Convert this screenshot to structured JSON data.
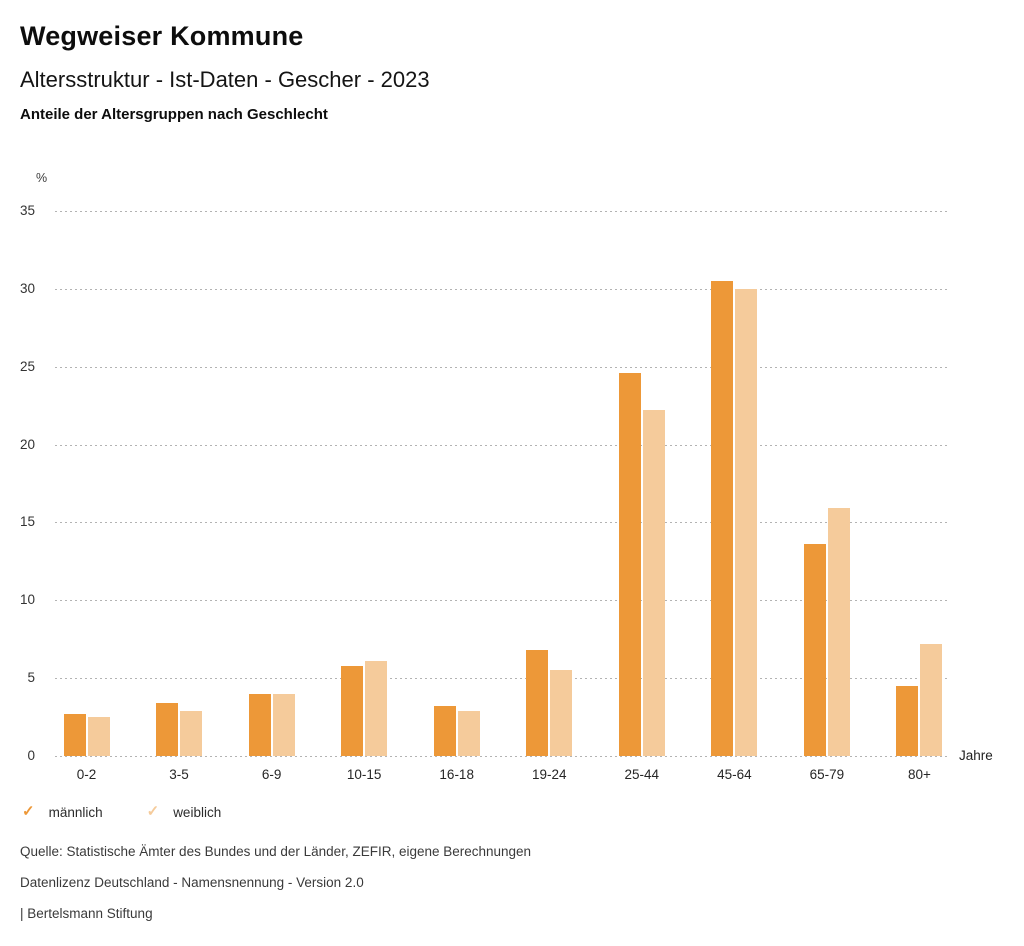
{
  "header": {
    "title": "Wegweiser Kommune",
    "subtitle": "Altersstruktur - Ist-Daten - Gescher - 2023",
    "chart_heading": "Anteile der Altersgruppen nach Geschlecht"
  },
  "chart_data": {
    "type": "bar",
    "title": "Anteile der Altersgruppen nach Geschlecht",
    "categories": [
      "0-2",
      "3-5",
      "6-9",
      "10-15",
      "16-18",
      "19-24",
      "25-44",
      "45-64",
      "65-79",
      "80+"
    ],
    "series": [
      {
        "name": "männlich",
        "color": "#ED9838",
        "values": [
          2.7,
          3.4,
          4.0,
          5.8,
          3.2,
          6.8,
          24.6,
          30.5,
          13.6,
          4.5
        ]
      },
      {
        "name": "weiblich",
        "color": "#F5CB9B",
        "values": [
          2.5,
          2.9,
          4.0,
          6.1,
          2.9,
          5.5,
          22.2,
          30.0,
          15.9,
          7.2
        ]
      }
    ],
    "ylabel": "%",
    "xlabel": "Jahre",
    "ylim": [
      0,
      35
    ],
    "ytick_step": 5,
    "yticks": [
      0,
      5,
      10,
      15,
      20,
      25,
      30,
      35
    ],
    "grid": "horizontal-dotted",
    "gridline_color": "#b3b3b3",
    "legend_position": "bottom-left"
  },
  "legend": {
    "items": [
      {
        "label": "männlich",
        "color": "#ED9838",
        "icon": "check-icon"
      },
      {
        "label": "weiblich",
        "color": "#F5CB9B",
        "icon": "check-icon"
      }
    ]
  },
  "footer": {
    "source": "Quelle: Statistische Ämter des Bundes und der Länder, ZEFIR, eigene Berechnungen",
    "license": "Datenlizenz Deutschland - Namensnennung - Version 2.0",
    "attribution": "| Bertelsmann Stiftung"
  }
}
